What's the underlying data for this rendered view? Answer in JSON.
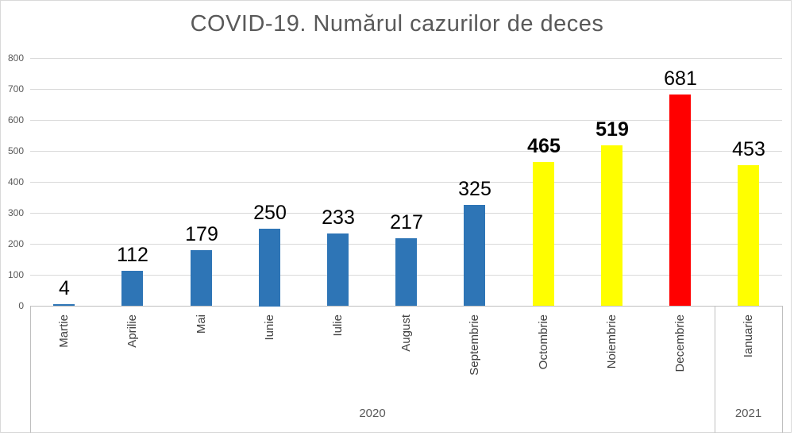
{
  "chart_data": {
    "type": "bar",
    "title": "COVID-19. Numărul cazurilor de deces",
    "categories": [
      "Martie",
      "Aprilie",
      "Mai",
      "Iunie",
      "Iulie",
      "August",
      "Septembrie",
      "Octombrie",
      "Noiembrie",
      "Decembrie",
      "Ianuarie"
    ],
    "values": [
      4,
      112,
      179,
      250,
      233,
      217,
      325,
      465,
      519,
      681,
      453
    ],
    "bar_colors": [
      "#2E75B6",
      "#2E75B6",
      "#2E75B6",
      "#2E75B6",
      "#2E75B6",
      "#2E75B6",
      "#2E75B6",
      "#FFFF00",
      "#FFFF00",
      "#FF0000",
      "#FFFF00"
    ],
    "bold_value_labels": [
      false,
      false,
      false,
      false,
      false,
      false,
      false,
      true,
      true,
      false,
      false
    ],
    "year_groups": [
      {
        "label": "2020",
        "count": 10
      },
      {
        "label": "2021",
        "count": 1
      }
    ],
    "ylim": [
      0,
      800
    ],
    "yticks": [
      0,
      100,
      200,
      300,
      400,
      500,
      600,
      700,
      800
    ],
    "grid": true,
    "legend_position": "none",
    "xlabel": "",
    "ylabel": ""
  },
  "theme": {
    "title_text": "#595959",
    "axis_text": "#595959",
    "category_text": "#404040",
    "year_text": "#595959",
    "value_label_text": "#000000",
    "gridline": "#D9D9D9",
    "axis_line": "#BFBFBF",
    "frame_border": "#D9D9D9",
    "background": "#FFFFFF"
  }
}
